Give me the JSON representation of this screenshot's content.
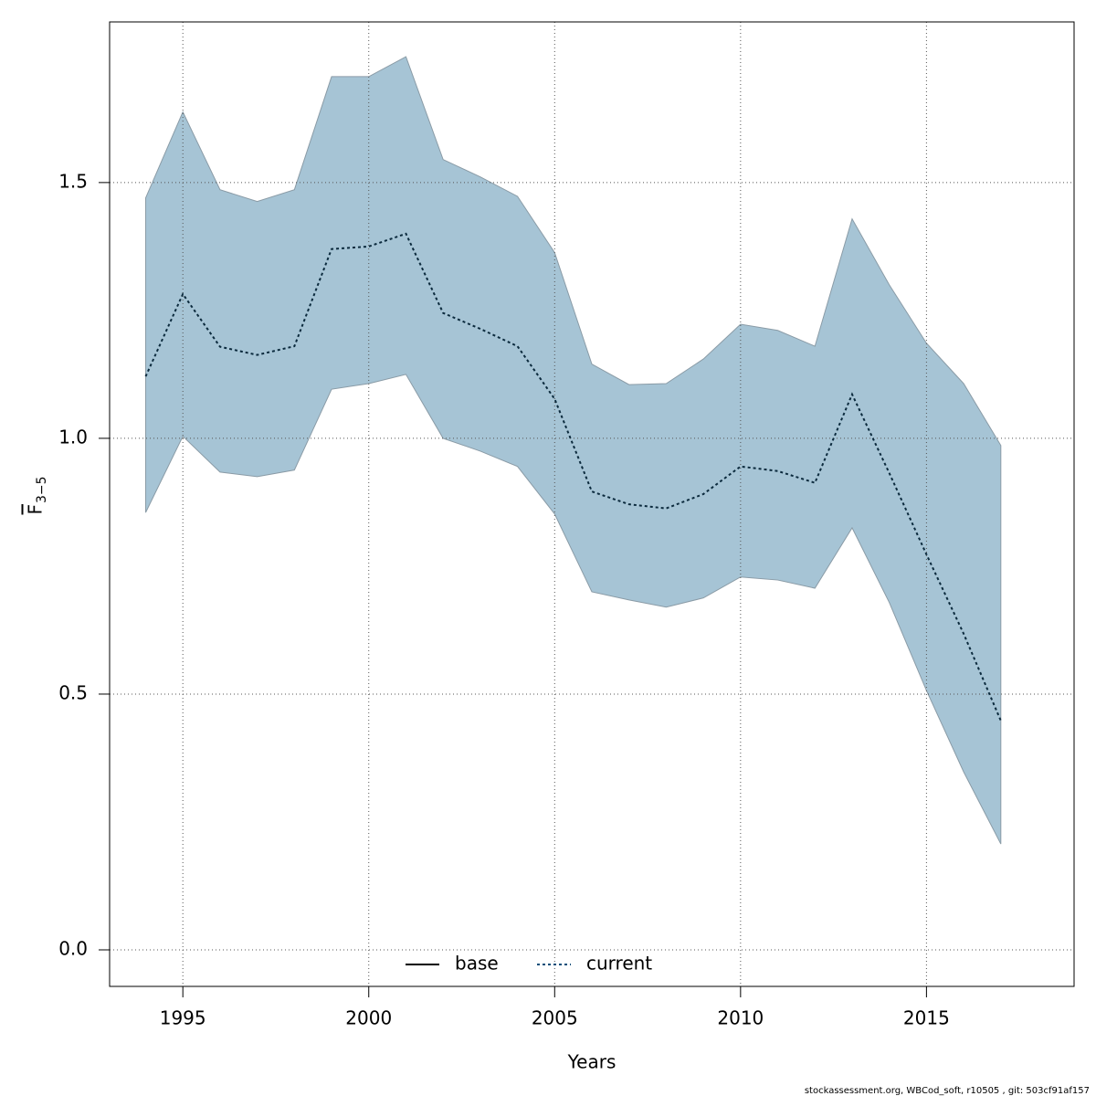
{
  "chart_data": {
    "type": "line",
    "xlabel": "Years",
    "ylabel": {
      "text": "F",
      "subscript": "3−5"
    },
    "footer": "stockassessment.org, WBCod_soft, r10505 , git: 503cf91af157",
    "x": [
      1994,
      1995,
      1996,
      1997,
      1998,
      1999,
      2000,
      2001,
      2002,
      2003,
      2004,
      2005,
      2006,
      2007,
      2008,
      2009,
      2010,
      2011,
      2012,
      2013,
      2014,
      2015,
      2016,
      2017
    ],
    "series": [
      {
        "name": "current",
        "color": "#0b2a3d",
        "dash": "dotted",
        "values": [
          1.121,
          1.282,
          1.179,
          1.163,
          1.18,
          1.37,
          1.375,
          1.4,
          1.245,
          1.214,
          1.18,
          1.077,
          0.896,
          0.871,
          0.863,
          0.891,
          0.945,
          0.936,
          0.913,
          1.086,
          0.932,
          0.773,
          0.618,
          0.448
        ]
      }
    ],
    "band": {
      "color": "#a6c4d5",
      "edge": "#8a9ba6",
      "upper": [
        1.47,
        1.638,
        1.486,
        1.463,
        1.486,
        1.707,
        1.707,
        1.746,
        1.545,
        1.511,
        1.473,
        1.363,
        1.145,
        1.105,
        1.107,
        1.155,
        1.223,
        1.211,
        1.18,
        1.429,
        1.3,
        1.186,
        1.107,
        0.986
      ],
      "lower": [
        0.855,
        1.004,
        0.934,
        0.925,
        0.938,
        1.096,
        1.107,
        1.125,
        1.0,
        0.975,
        0.945,
        0.852,
        0.7,
        0.684,
        0.67,
        0.688,
        0.729,
        0.723,
        0.707,
        0.825,
        0.679,
        0.507,
        0.348,
        0.207
      ]
    },
    "legend": {
      "position": "bottom",
      "items": [
        {
          "name": "base",
          "color": "#000000",
          "dash": "solid"
        },
        {
          "name": "current",
          "color": "#0b4f7a",
          "dash": "dotted"
        }
      ]
    },
    "xlim": [
      1993.03,
      2018.97
    ],
    "ylim": [
      -0.0714,
      1.814
    ],
    "xticks": [
      1995,
      2000,
      2005,
      2010,
      2015
    ],
    "yticks": [
      {
        "value": 0,
        "label": "0.0"
      },
      0.5,
      {
        "value": 1,
        "label": "1.0"
      },
      1.5
    ],
    "grid": true
  }
}
